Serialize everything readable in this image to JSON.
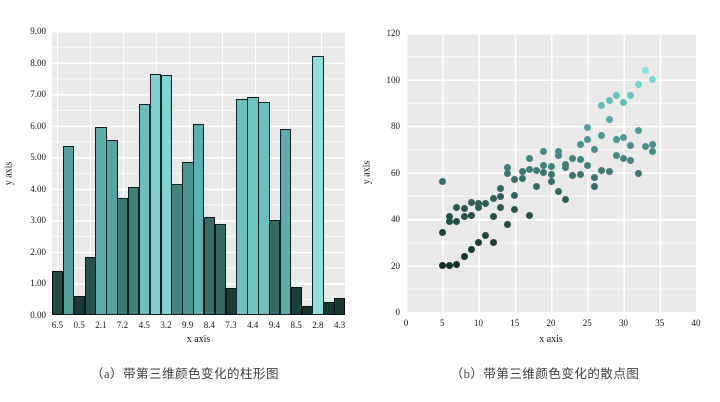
{
  "figure": {
    "background": "#ffffff",
    "plot_background": "#e9e9e9",
    "gridline_color": "#ffffff"
  },
  "chart_data": [
    {
      "type": "bar",
      "title": "（a）带第三维颜色变化的柱形图",
      "xlabel": "x axis",
      "ylabel": "y axis",
      "values": [
        1.4,
        5.35,
        0.6,
        1.85,
        5.95,
        5.55,
        3.7,
        4.05,
        6.7,
        7.65,
        7.6,
        4.15,
        4.85,
        6.05,
        3.1,
        2.9,
        0.85,
        6.85,
        6.9,
        6.75,
        3.0,
        5.9,
        0.9,
        0.27,
        8.2,
        0.4,
        0.55
      ],
      "x_tick_labels": [
        "6.5",
        "0.5",
        "2.1",
        "7.2",
        "4.5",
        "3.2",
        "9.9",
        "8.4",
        "7.3",
        "4.4",
        "9.4",
        "8.5",
        "2.8",
        "4.3"
      ],
      "x_tick_every": 2,
      "y_tick_labels": [
        "0.00",
        "1.00",
        "2.00",
        "3.00",
        "4.00",
        "5.00",
        "6.00",
        "7.00",
        "8.00",
        "9.00"
      ],
      "ylim": [
        0,
        9
      ],
      "grid": true,
      "legend_position": "none",
      "color_by": "value",
      "colormap": [
        "#16332e",
        "#2c5a55",
        "#43857f",
        "#5fb4b4",
        "#8edede"
      ],
      "bar_edge_color": "#0a1616"
    },
    {
      "type": "scatter",
      "title": "（b）带第三维颜色变化的散点图",
      "xlabel": "x axis",
      "ylabel": "y axis",
      "xlim": [
        0,
        40
      ],
      "ylim": [
        0,
        120
      ],
      "x_tick_labels": [
        "0",
        "5",
        "10",
        "15",
        "20",
        "25",
        "30",
        "35",
        "40"
      ],
      "y_tick_labels": [
        "0",
        "20",
        "40",
        "60",
        "80",
        "100",
        "120"
      ],
      "grid": true,
      "legend_position": "none",
      "color_by": "y",
      "colormap": [
        "#12302b",
        "#25504a",
        "#3e7d78",
        "#55a8a4",
        "#82e4e0"
      ],
      "points": [
        [
          5,
          20
        ],
        [
          6,
          20
        ],
        [
          7,
          20.5
        ],
        [
          8,
          24
        ],
        [
          9,
          27
        ],
        [
          10,
          30
        ],
        [
          11,
          33
        ],
        [
          12,
          30
        ],
        [
          5,
          34
        ],
        [
          5,
          56
        ],
        [
          6,
          39
        ],
        [
          6,
          41
        ],
        [
          7,
          39
        ],
        [
          7,
          45
        ],
        [
          8,
          41
        ],
        [
          8,
          44.5
        ],
        [
          9,
          41.5
        ],
        [
          9,
          47
        ],
        [
          10,
          45
        ],
        [
          10,
          46.5
        ],
        [
          11,
          46.5
        ],
        [
          12,
          41
        ],
        [
          12,
          49
        ],
        [
          13,
          45
        ],
        [
          13,
          49.5
        ],
        [
          13,
          53
        ],
        [
          14,
          37.5
        ],
        [
          14,
          59.5
        ],
        [
          14,
          62
        ],
        [
          15,
          44
        ],
        [
          15,
          50
        ],
        [
          15,
          57
        ],
        [
          16,
          57.5
        ],
        [
          16,
          60.5
        ],
        [
          17,
          41.5
        ],
        [
          17,
          61.5
        ],
        [
          17,
          66
        ],
        [
          18,
          54
        ],
        [
          18,
          61
        ],
        [
          19,
          60
        ],
        [
          19,
          63
        ],
        [
          19,
          69
        ],
        [
          20,
          56
        ],
        [
          20,
          59
        ],
        [
          20,
          62.5
        ],
        [
          21,
          52
        ],
        [
          21,
          67.5
        ],
        [
          21,
          69
        ],
        [
          22,
          48.5
        ],
        [
          22,
          62
        ],
        [
          22,
          63.5
        ],
        [
          23,
          58.5
        ],
        [
          23,
          66
        ],
        [
          24,
          59
        ],
        [
          24,
          65.5
        ],
        [
          24,
          72
        ],
        [
          25,
          63
        ],
        [
          25,
          74
        ],
        [
          25,
          79.5
        ],
        [
          26,
          54
        ],
        [
          26,
          58
        ],
        [
          26,
          70
        ],
        [
          27,
          61
        ],
        [
          27,
          76
        ],
        [
          27,
          89
        ],
        [
          28,
          60.5
        ],
        [
          28,
          83
        ],
        [
          28,
          91
        ],
        [
          29,
          67.5
        ],
        [
          29,
          74
        ],
        [
          29,
          93
        ],
        [
          30,
          66
        ],
        [
          30,
          75
        ],
        [
          30,
          90
        ],
        [
          31,
          65
        ],
        [
          31,
          71.5
        ],
        [
          31,
          93
        ],
        [
          32,
          59.5
        ],
        [
          32,
          78
        ],
        [
          32,
          98
        ],
        [
          33,
          71
        ],
        [
          33,
          104
        ],
        [
          34,
          69
        ],
        [
          34,
          72
        ],
        [
          34,
          100
        ]
      ]
    }
  ]
}
